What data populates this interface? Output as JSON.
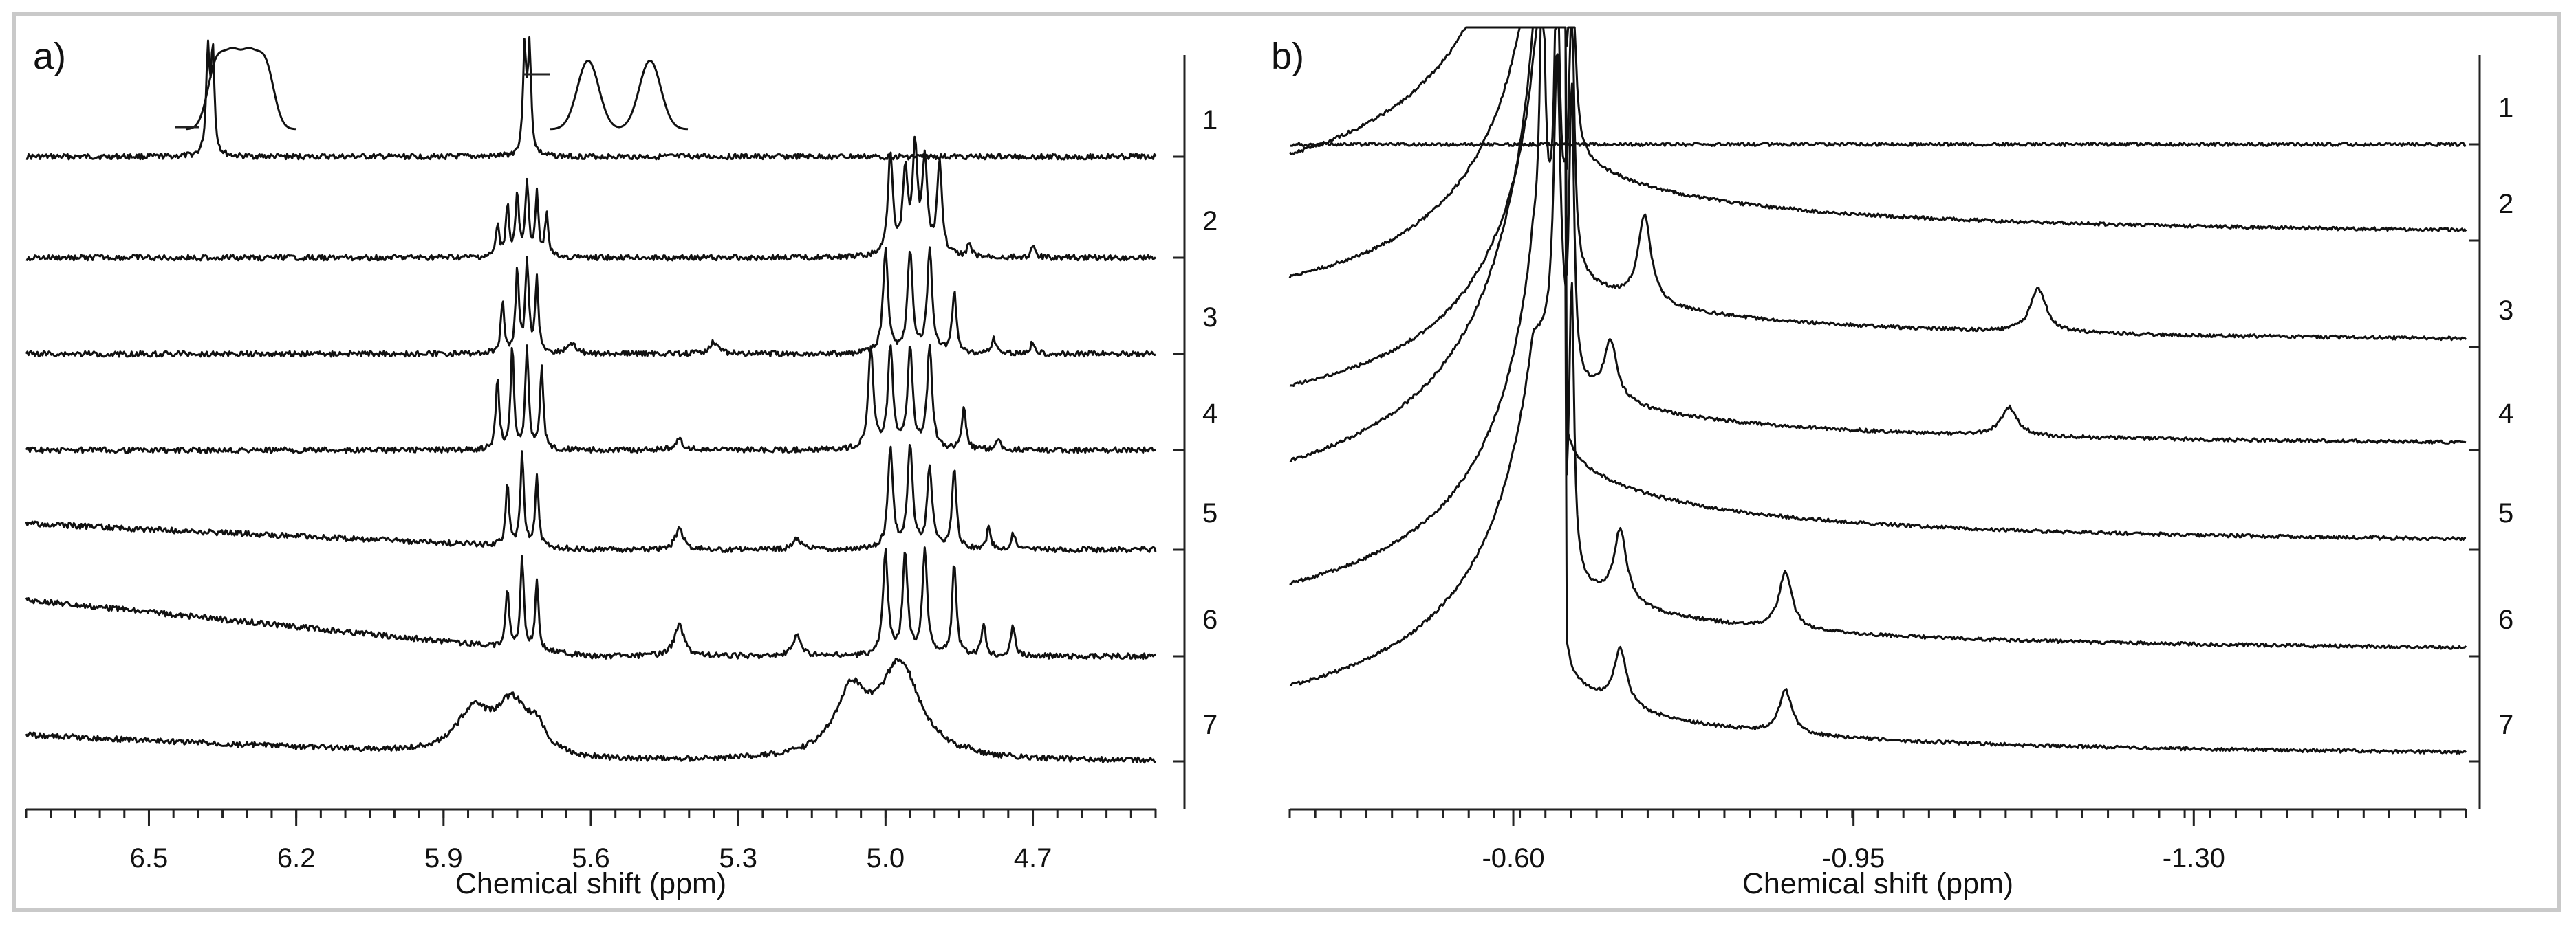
{
  "chart_data": [
    {
      "type": "line",
      "panel_label": "a)",
      "xlabel": "Chemical shift (ppm)",
      "ylabel": "",
      "x_reversed": true,
      "xlim": [
        6.75,
        4.45
      ],
      "x_ticks": [
        6.5,
        6.2,
        5.9,
        5.6,
        5.3,
        5.0,
        4.7
      ],
      "x_tick_labels": [
        "6.5",
        "6.2",
        "5.9",
        "5.6",
        "5.3",
        "5.0",
        "4.7"
      ],
      "right_axis_labels": [
        "1",
        "2",
        "3",
        "4",
        "5",
        "6",
        "7"
      ],
      "series": [
        {
          "name": "1",
          "peaks": [
            {
              "x": 6.38,
              "h": 1.0,
              "w": 0.004
            },
            {
              "x": 6.37,
              "h": 1.0,
              "w": 0.004
            },
            {
              "x": 5.735,
              "h": 1.0,
              "w": 0.004
            },
            {
              "x": 5.725,
              "h": 1.0,
              "w": 0.004
            }
          ]
        },
        {
          "name": "2",
          "peaks": [
            {
              "x": 5.79,
              "h": 0.3,
              "w": 0.004
            },
            {
              "x": 5.77,
              "h": 0.5,
              "w": 0.004
            },
            {
              "x": 5.75,
              "h": 0.6,
              "w": 0.004
            },
            {
              "x": 5.73,
              "h": 0.7,
              "w": 0.004
            },
            {
              "x": 5.71,
              "h": 0.6,
              "w": 0.004
            },
            {
              "x": 5.69,
              "h": 0.4,
              "w": 0.004
            },
            {
              "x": 4.99,
              "h": 1.0,
              "w": 0.006
            },
            {
              "x": 4.96,
              "h": 0.8,
              "w": 0.006
            },
            {
              "x": 4.94,
              "h": 1.0,
              "w": 0.006
            },
            {
              "x": 4.92,
              "h": 0.9,
              "w": 0.006
            },
            {
              "x": 4.89,
              "h": 0.9,
              "w": 0.006
            },
            {
              "x": 4.83,
              "h": 0.12,
              "w": 0.005
            },
            {
              "x": 4.7,
              "h": 0.1,
              "w": 0.005
            }
          ]
        },
        {
          "name": "3",
          "peaks": [
            {
              "x": 5.78,
              "h": 0.5,
              "w": 0.004
            },
            {
              "x": 5.75,
              "h": 0.8,
              "w": 0.004
            },
            {
              "x": 5.73,
              "h": 0.9,
              "w": 0.004
            },
            {
              "x": 5.71,
              "h": 0.7,
              "w": 0.004
            },
            {
              "x": 5.64,
              "h": 0.1,
              "w": 0.01
            },
            {
              "x": 5.35,
              "h": 0.12,
              "w": 0.01
            },
            {
              "x": 5.0,
              "h": 1.0,
              "w": 0.006
            },
            {
              "x": 4.95,
              "h": 1.0,
              "w": 0.006
            },
            {
              "x": 4.91,
              "h": 1.0,
              "w": 0.006
            },
            {
              "x": 4.86,
              "h": 0.6,
              "w": 0.005
            },
            {
              "x": 4.78,
              "h": 0.15,
              "w": 0.005
            },
            {
              "x": 4.7,
              "h": 0.12,
              "w": 0.005
            }
          ]
        },
        {
          "name": "4",
          "peaks": [
            {
              "x": 5.79,
              "h": 0.7,
              "w": 0.004
            },
            {
              "x": 5.76,
              "h": 1.0,
              "w": 0.004
            },
            {
              "x": 5.73,
              "h": 1.0,
              "w": 0.004
            },
            {
              "x": 5.7,
              "h": 0.8,
              "w": 0.004
            },
            {
              "x": 5.42,
              "h": 0.1,
              "w": 0.01
            },
            {
              "x": 5.03,
              "h": 1.0,
              "w": 0.006
            },
            {
              "x": 4.99,
              "h": 1.0,
              "w": 0.006
            },
            {
              "x": 4.95,
              "h": 1.0,
              "w": 0.006
            },
            {
              "x": 4.91,
              "h": 1.0,
              "w": 0.006
            },
            {
              "x": 4.84,
              "h": 0.4,
              "w": 0.005
            },
            {
              "x": 4.77,
              "h": 0.1,
              "w": 0.005
            }
          ]
        },
        {
          "name": "5",
          "peaks": [
            {
              "x": 5.77,
              "h": 0.6,
              "w": 0.004
            },
            {
              "x": 5.74,
              "h": 0.9,
              "w": 0.004
            },
            {
              "x": 5.71,
              "h": 0.7,
              "w": 0.004
            },
            {
              "x": 5.42,
              "h": 0.2,
              "w": 0.01
            },
            {
              "x": 5.18,
              "h": 0.1,
              "w": 0.01
            },
            {
              "x": 4.99,
              "h": 1.0,
              "w": 0.006
            },
            {
              "x": 4.95,
              "h": 1.0,
              "w": 0.006
            },
            {
              "x": 4.91,
              "h": 0.8,
              "w": 0.006
            },
            {
              "x": 4.86,
              "h": 0.8,
              "w": 0.005
            },
            {
              "x": 4.79,
              "h": 0.2,
              "w": 0.005
            },
            {
              "x": 4.74,
              "h": 0.15,
              "w": 0.005
            }
          ]
        },
        {
          "name": "6",
          "peaks": [
            {
              "x": 5.77,
              "h": 0.6,
              "w": 0.004
            },
            {
              "x": 5.74,
              "h": 0.9,
              "w": 0.004
            },
            {
              "x": 5.71,
              "h": 0.7,
              "w": 0.004
            },
            {
              "x": 5.42,
              "h": 0.3,
              "w": 0.012
            },
            {
              "x": 5.18,
              "h": 0.2,
              "w": 0.01
            },
            {
              "x": 5.0,
              "h": 1.0,
              "w": 0.006
            },
            {
              "x": 4.96,
              "h": 1.0,
              "w": 0.006
            },
            {
              "x": 4.92,
              "h": 1.0,
              "w": 0.006
            },
            {
              "x": 4.86,
              "h": 0.9,
              "w": 0.005
            },
            {
              "x": 4.8,
              "h": 0.3,
              "w": 0.005
            },
            {
              "x": 4.74,
              "h": 0.3,
              "w": 0.005
            }
          ]
        },
        {
          "name": "7",
          "peaks": [
            {
              "x": 5.84,
              "h": 0.4,
              "w": 0.04
            },
            {
              "x": 5.76,
              "h": 0.5,
              "w": 0.04
            },
            {
              "x": 5.71,
              "h": 0.2,
              "w": 0.02
            },
            {
              "x": 5.07,
              "h": 0.6,
              "w": 0.04
            },
            {
              "x": 4.97,
              "h": 0.9,
              "w": 0.05
            },
            {
              "x": 4.83,
              "h": 0.05,
              "w": 0.005
            }
          ]
        }
      ]
    },
    {
      "type": "line",
      "panel_label": "b)",
      "xlabel": "Chemical shift (ppm)",
      "ylabel": "",
      "x_reversed": true,
      "xlim": [
        -0.37,
        -1.58
      ],
      "x_ticks": [
        -0.6,
        -0.95,
        -1.3
      ],
      "x_tick_labels": [
        "-0.60",
        "-0.95",
        "-1.30"
      ],
      "right_axis_labels": [
        "1",
        "2",
        "3",
        "4",
        "5",
        "6",
        "7"
      ],
      "series": [
        {
          "name": "1",
          "peaks": []
        },
        {
          "name": "2",
          "peaks": [
            {
              "x": -0.63,
              "h": 1.0,
              "w": 0.003
            },
            {
              "x": -0.645,
              "h": 1.0,
              "w": 0.003
            },
            {
              "x": -0.66,
              "h": 1.0,
              "w": 0.003
            }
          ]
        },
        {
          "name": "3",
          "peaks": [
            {
              "x": -0.63,
              "h": 1.0,
              "w": 0.003
            },
            {
              "x": -0.645,
              "h": 1.0,
              "w": 0.003
            },
            {
              "x": -0.66,
              "h": 1.0,
              "w": 0.003
            },
            {
              "x": -0.735,
              "h": 0.3,
              "w": 0.008
            },
            {
              "x": -1.14,
              "h": 0.15,
              "w": 0.01
            }
          ]
        },
        {
          "name": "4",
          "peaks": [
            {
              "x": -0.63,
              "h": 1.0,
              "w": 0.003
            },
            {
              "x": -0.645,
              "h": 1.0,
              "w": 0.003
            },
            {
              "x": -0.66,
              "h": 1.0,
              "w": 0.003
            },
            {
              "x": -0.7,
              "h": 0.2,
              "w": 0.008
            },
            {
              "x": -1.11,
              "h": 0.1,
              "w": 0.01
            }
          ]
        },
        {
          "name": "5",
          "peaks": [
            {
              "x": -0.63,
              "h": 1.0,
              "w": 0.003
            },
            {
              "x": -0.645,
              "h": 1.0,
              "w": 0.003
            }
          ]
        },
        {
          "name": "6",
          "peaks": [
            {
              "x": -0.63,
              "h": 1.0,
              "w": 0.003
            },
            {
              "x": -0.645,
              "h": 1.0,
              "w": 0.003
            },
            {
              "x": -0.66,
              "h": 1.0,
              "w": 0.003
            },
            {
              "x": -0.71,
              "h": 0.25,
              "w": 0.008
            },
            {
              "x": -0.88,
              "h": 0.2,
              "w": 0.008
            }
          ]
        },
        {
          "name": "7",
          "peaks": [
            {
              "x": -0.645,
              "h": 1.0,
              "w": 0.004
            },
            {
              "x": -0.71,
              "h": 0.2,
              "w": 0.008
            },
            {
              "x": -0.88,
              "h": 0.15,
              "w": 0.008
            }
          ]
        }
      ]
    }
  ]
}
